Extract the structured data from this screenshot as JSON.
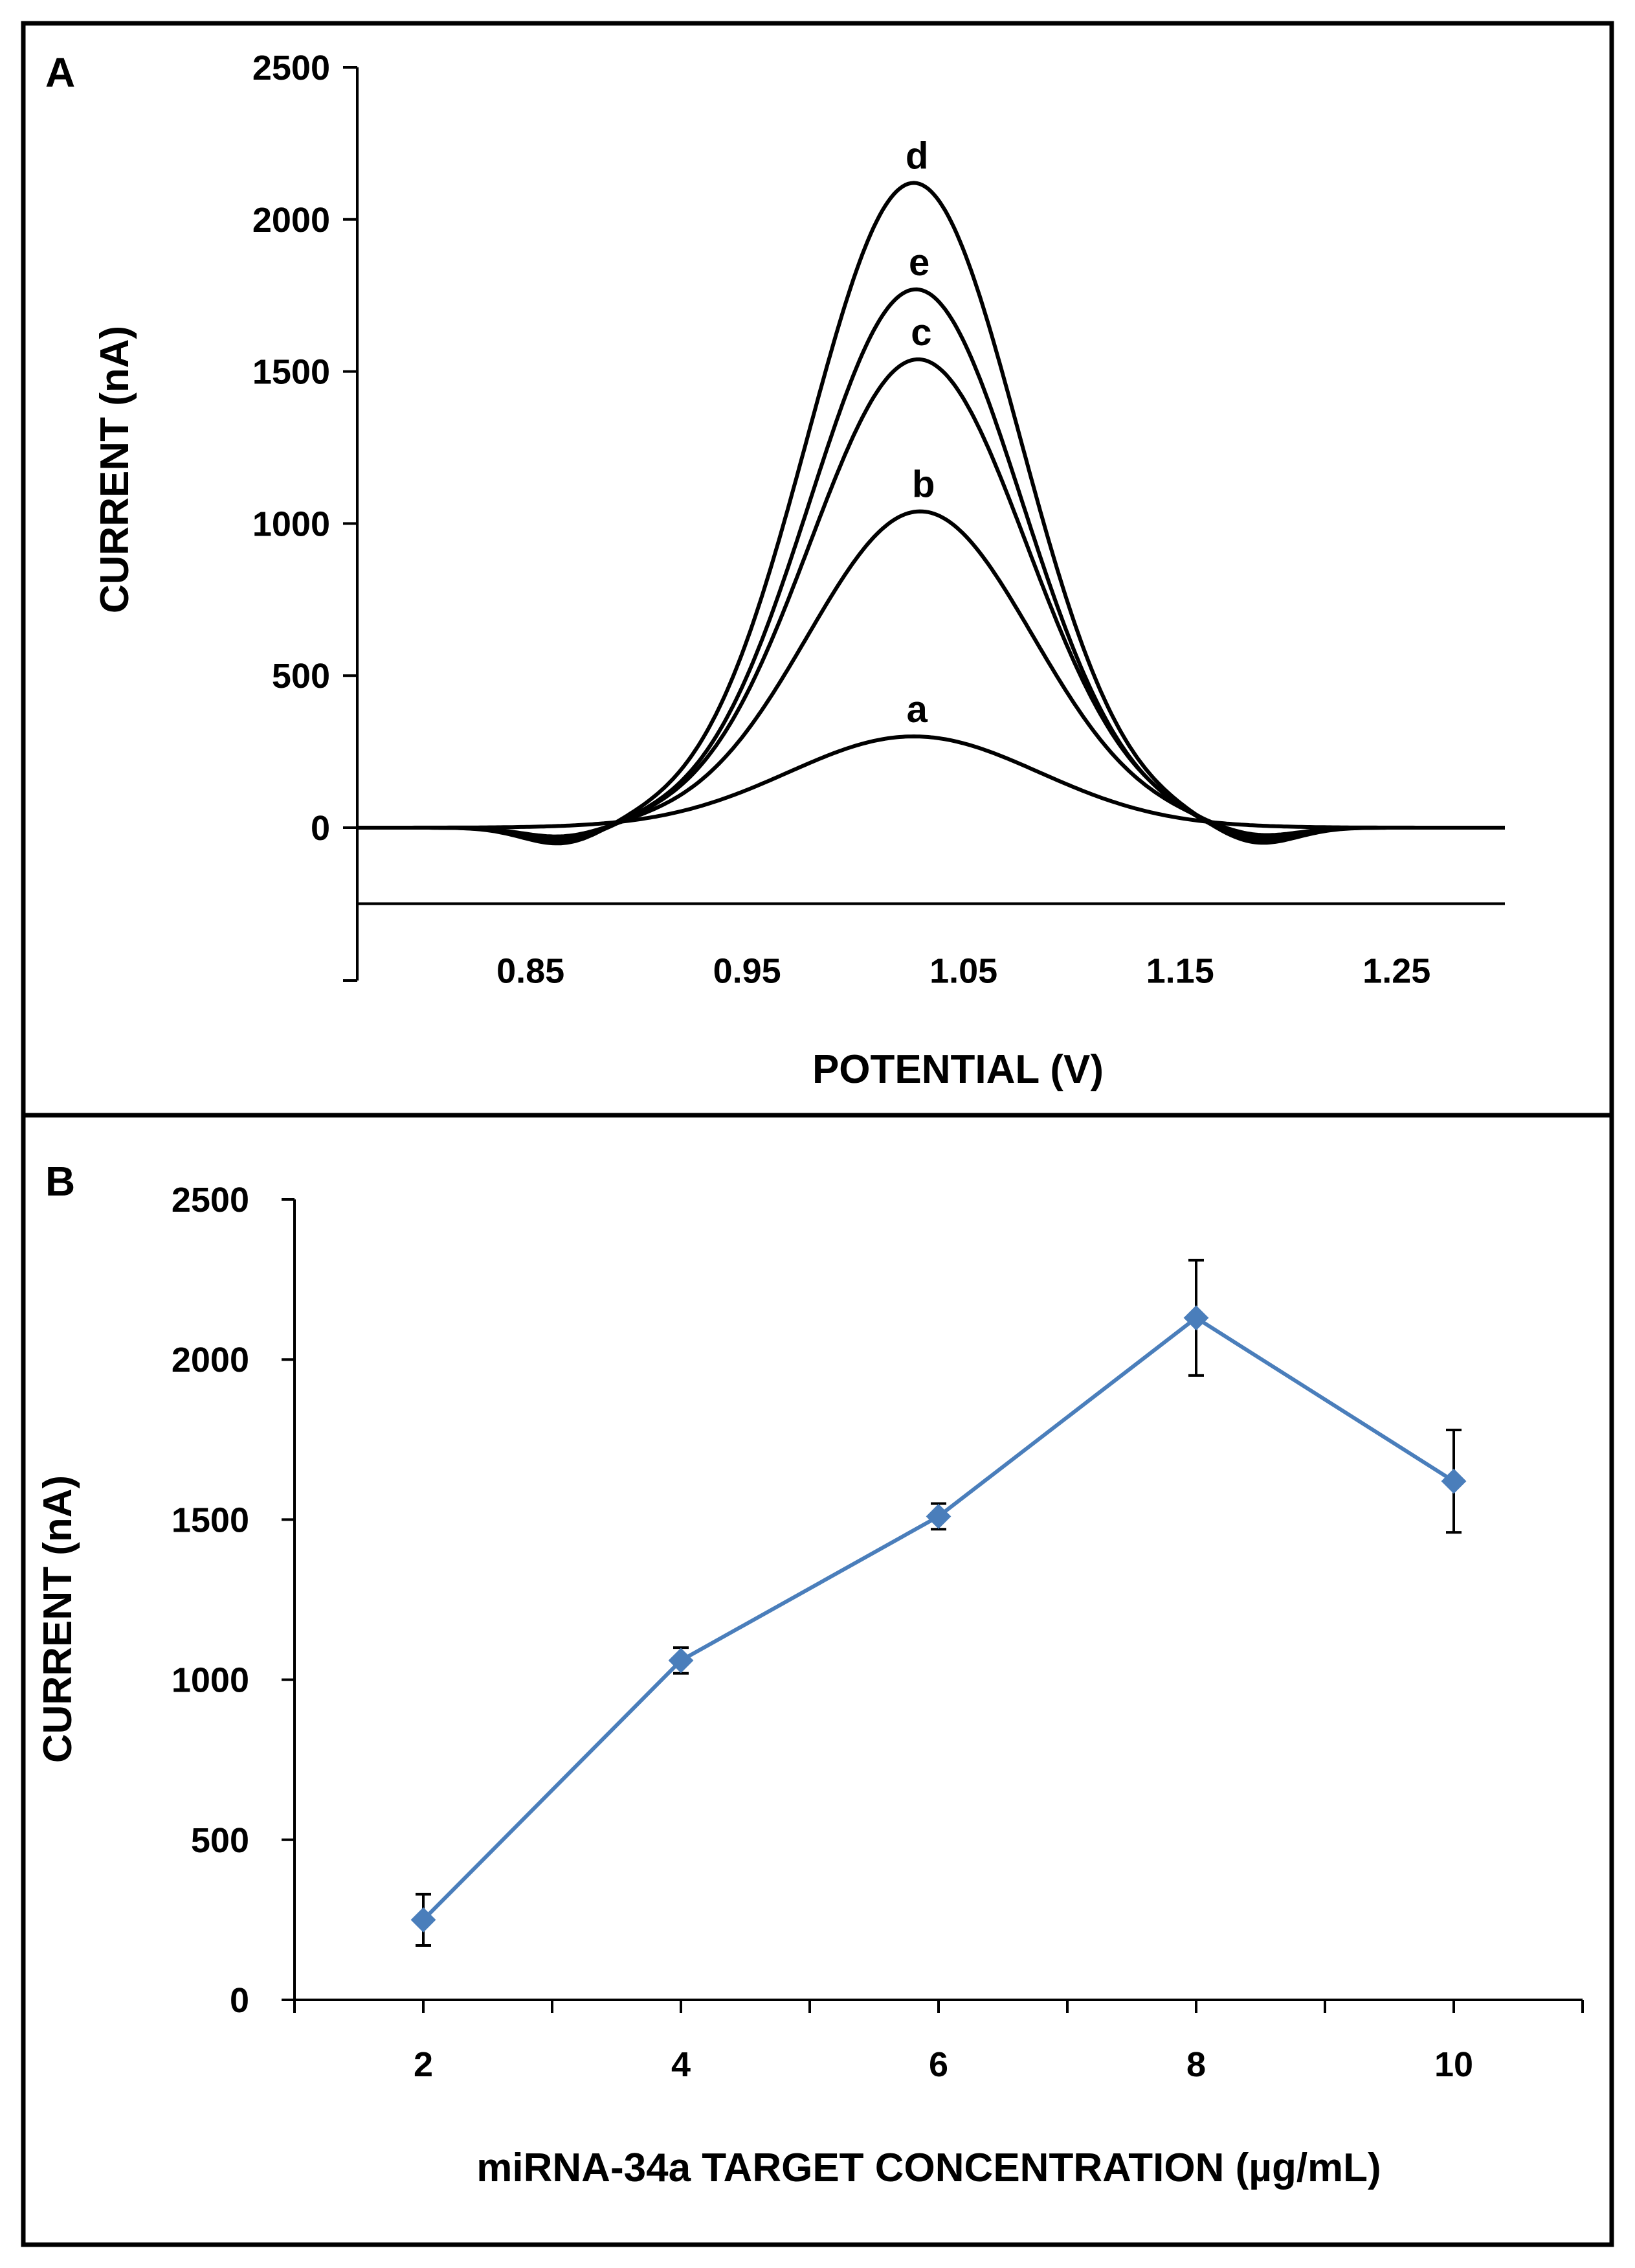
{
  "chart_data": [
    {
      "panel": "A",
      "type": "line",
      "xlabel": "POTENTIAL (V)",
      "ylabel": "CURRENT (nA)",
      "xlim": [
        0.77,
        1.3
      ],
      "ylim": [
        -250,
        2500
      ],
      "xticks": [
        0.85,
        0.95,
        1.05,
        1.15,
        1.25
      ],
      "xtick_labels": [
        "0.85",
        "0.95",
        "1.05",
        "1.15",
        "1.25"
      ],
      "yticks": [
        0,
        500,
        1000,
        1500,
        2000,
        2500
      ],
      "ytick_labels": [
        "0",
        "500",
        "1000",
        "1500",
        "2000",
        "2500"
      ],
      "x_axis_at_y": -250,
      "grid": false,
      "line_color": "#000000",
      "series": [
        {
          "label": "a",
          "peak_x": 1.027,
          "peak_y": 300,
          "width": 0.058,
          "dip": 0
        },
        {
          "label": "b",
          "peak_x": 1.03,
          "peak_y": 1040,
          "width": 0.052,
          "dip": 35
        },
        {
          "label": "c",
          "peak_x": 1.029,
          "peak_y": 1540,
          "width": 0.05,
          "dip": 45
        },
        {
          "label": "e",
          "peak_x": 1.028,
          "peak_y": 1770,
          "width": 0.049,
          "dip": 50
        },
        {
          "label": "d",
          "peak_x": 1.027,
          "peak_y": 2120,
          "width": 0.049,
          "dip": 60
        }
      ]
    },
    {
      "panel": "B",
      "type": "line",
      "xlabel": "miRNA-34a TARGET CONCENTRATION (µg/mL)",
      "ylabel": "CURRENT (nA)",
      "categories": [
        "2",
        "4",
        "6",
        "8",
        "10"
      ],
      "xlim": [
        1,
        11
      ],
      "ylim": [
        0,
        2500
      ],
      "yticks": [
        0,
        500,
        1000,
        1500,
        2000,
        2500
      ],
      "ytick_labels": [
        "0",
        "500",
        "1000",
        "1500",
        "2000",
        "2500"
      ],
      "grid": false,
      "marker": "diamond",
      "color": "#4a7ebb",
      "series": [
        {
          "x": [
            2,
            4,
            6,
            8,
            10
          ],
          "values": [
            250,
            1060,
            1510,
            2130,
            1620
          ],
          "error": [
            80,
            40,
            40,
            180,
            160
          ]
        }
      ]
    }
  ]
}
